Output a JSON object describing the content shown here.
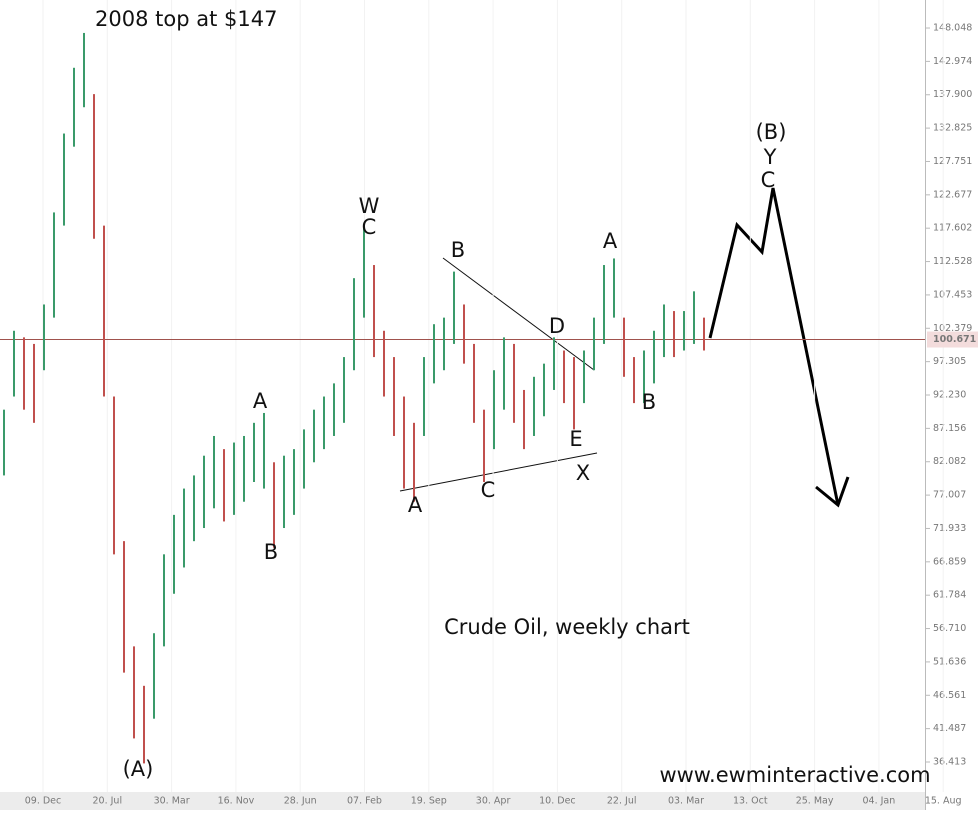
{
  "chart_data": {
    "type": "ohlc",
    "categories": [
      "09. Dec",
      "20. Jul",
      "30. Mar",
      "16. Nov",
      "28. Jun",
      "07. Feb",
      "19. Sep",
      "30. Apr",
      "10. Dec",
      "22. Jul",
      "03. Mar",
      "13. Oct",
      "25. May",
      "04. Jan",
      "15. Aug"
    ],
    "high": [
      90,
      102,
      101,
      100,
      106,
      120,
      132,
      142,
      147.3,
      138,
      118,
      92,
      70,
      54,
      48,
      56,
      68,
      74,
      78,
      80,
      83,
      86,
      84,
      85,
      86,
      88,
      89.5,
      82,
      83,
      84,
      87,
      90,
      92,
      94,
      98,
      110,
      118,
      112,
      102,
      98,
      92,
      88,
      98,
      103,
      104,
      111,
      106,
      100,
      90,
      96,
      101,
      100,
      93,
      95,
      97,
      101,
      99,
      98,
      99,
      104,
      112,
      113,
      104,
      98,
      99,
      102,
      106,
      105,
      105,
      108,
      104
    ],
    "low": [
      80,
      92,
      90,
      88,
      96,
      104,
      118,
      130,
      136,
      116,
      92,
      68,
      50,
      40,
      36.2,
      43,
      54,
      62,
      66,
      70,
      72,
      75,
      73,
      74,
      76,
      79,
      78,
      69,
      72,
      74,
      78,
      82,
      84,
      86,
      88,
      96,
      104,
      98,
      92,
      86,
      78,
      76,
      86,
      94,
      96,
      100,
      97,
      88,
      79,
      84,
      90,
      88,
      84,
      86,
      89,
      93,
      91,
      87,
      91,
      96,
      100,
      104,
      95,
      91,
      91,
      94,
      98,
      98,
      99,
      100,
      99
    ],
    "up_color": "#3a9a6a",
    "down_color": "#c0504d",
    "ylim": [
      31.85,
      152.31
    ],
    "yticks": [
      148.048,
      142.974,
      {
        "value": 137.9,
        "label": "137.900"
      },
      132.825,
      127.751,
      122.677,
      117.602,
      112.528,
      107.453,
      102.379,
      97.305,
      {
        "value": 92.23,
        "label": "92.230"
      },
      87.156,
      82.082,
      77.007,
      71.933,
      66.859,
      61.784,
      {
        "value": 56.71,
        "label": "56.710"
      },
      51.636,
      46.561,
      41.487,
      36.413
    ],
    "last_price": 100.671,
    "annotations": [
      "2008 top at $147",
      "(A)",
      "A",
      "B",
      "W",
      "C",
      "A",
      "B",
      "C",
      "D",
      "E",
      "X",
      "A",
      "B",
      "(B)",
      "Y",
      "C",
      "Crude Oil, weekly chart",
      "www.ewminteractive.com"
    ]
  }
}
